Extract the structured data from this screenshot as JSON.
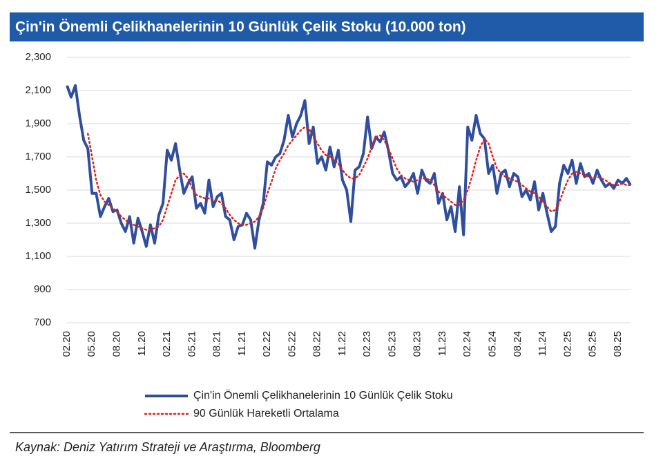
{
  "chart_data": {
    "type": "line",
    "title": "Çin'in Önemli Çelikhanelerinin 10 Günlük Çelik Stoku (10.000 ton)",
    "source": "Kaynak: Deniz Yatırım Strateji ve Araştırma, Bloomberg",
    "categories": [
      "02.20",
      null,
      null,
      null,
      null,
      null,
      "05.20",
      null,
      null,
      null,
      null,
      null,
      "08.20",
      null,
      null,
      null,
      null,
      null,
      "11.20",
      null,
      null,
      null,
      null,
      null,
      "02.21",
      null,
      null,
      null,
      null,
      null,
      "05.21",
      null,
      null,
      null,
      null,
      null,
      "08.21",
      null,
      null,
      null,
      null,
      null,
      "11.21",
      null,
      null,
      null,
      null,
      null,
      "02.22",
      null,
      null,
      null,
      null,
      null,
      "05.22",
      null,
      null,
      null,
      null,
      null,
      "08.22",
      null,
      null,
      null,
      null,
      null,
      "11.22",
      null,
      null,
      null,
      null,
      null,
      "02.23",
      null,
      null,
      null,
      null,
      null,
      "05.23",
      null,
      null,
      null,
      null,
      null,
      "08.23",
      null,
      null,
      null,
      null,
      null,
      "11.23",
      null,
      null,
      null,
      null,
      null,
      "02.24",
      null,
      null,
      null,
      null,
      null,
      "05.24",
      null,
      null,
      null,
      null,
      null,
      "08.24",
      null,
      null,
      null,
      null,
      null,
      "11.24",
      null,
      null,
      null,
      null,
      null,
      "02.25",
      null,
      null,
      null,
      null,
      null,
      "05.25",
      null,
      null,
      null,
      null,
      null,
      "08.25",
      null,
      null,
      null
    ],
    "series": [
      {
        "name": "Çin'in Önemli Çelikhanelerinin 10 Günlük Çelik Stoku",
        "color": "#2f4f9e",
        "style": "solid",
        "values": [
          2130,
          2060,
          2130,
          1950,
          1800,
          1750,
          1480,
          1480,
          1340,
          1400,
          1450,
          1370,
          1380,
          1300,
          1250,
          1340,
          1180,
          1330,
          1250,
          1160,
          1290,
          1180,
          1350,
          1420,
          1740,
          1680,
          1780,
          1620,
          1480,
          1540,
          1580,
          1390,
          1420,
          1360,
          1560,
          1400,
          1460,
          1480,
          1340,
          1320,
          1200,
          1280,
          1290,
          1360,
          1320,
          1150,
          1320,
          1420,
          1670,
          1650,
          1700,
          1720,
          1800,
          1950,
          1820,
          1900,
          1950,
          2040,
          1780,
          1880,
          1660,
          1700,
          1620,
          1760,
          1640,
          1740,
          1560,
          1500,
          1310,
          1620,
          1640,
          1720,
          1940,
          1750,
          1820,
          1790,
          1850,
          1740,
          1600,
          1560,
          1580,
          1520,
          1550,
          1600,
          1480,
          1620,
          1560,
          1540,
          1600,
          1420,
          1480,
          1320,
          1400,
          1250,
          1520,
          1230,
          1880,
          1800,
          1950,
          1840,
          1810,
          1600,
          1650,
          1480,
          1600,
          1620,
          1520,
          1600,
          1580,
          1460,
          1500,
          1440,
          1550,
          1380,
          1480,
          1360,
          1250,
          1280,
          1540,
          1650,
          1600,
          1680,
          1540,
          1660,
          1580,
          1600,
          1540,
          1620,
          1560,
          1520,
          1540,
          1510,
          1560,
          1540,
          1570,
          1530
        ]
      },
      {
        "name": "90 Günlük Hareketli Ortalama",
        "color": "#e02020",
        "style": "dotted",
        "values": [
          null,
          null,
          null,
          null,
          null,
          1840,
          1700,
          1560,
          1470,
          1430,
          1410,
          1390,
          1370,
          1340,
          1320,
          1300,
          1290,
          1280,
          1270,
          1260,
          1260,
          1270,
          1280,
          1320,
          1400,
          1480,
          1560,
          1590,
          1600,
          1570,
          1510,
          1470,
          1460,
          1450,
          1450,
          1440,
          1440,
          1420,
          1390,
          1350,
          1320,
          1300,
          1290,
          1290,
          1300,
          1310,
          1340,
          1390,
          1480,
          1550,
          1630,
          1680,
          1720,
          1770,
          1800,
          1830,
          1860,
          1880,
          1870,
          1820,
          1780,
          1740,
          1710,
          1700,
          1680,
          1660,
          1620,
          1590,
          1570,
          1570,
          1590,
          1640,
          1690,
          1760,
          1820,
          1830,
          1800,
          1750,
          1690,
          1630,
          1590,
          1570,
          1560,
          1550,
          1560,
          1570,
          1570,
          1560,
          1530,
          1490,
          1470,
          1450,
          1430,
          1410,
          1410,
          1440,
          1500,
          1580,
          1680,
          1760,
          1810,
          1780,
          1700,
          1630,
          1600,
          1580,
          1570,
          1560,
          1550,
          1530,
          1510,
          1490,
          1480,
          1460,
          1430,
          1400,
          1370,
          1380,
          1430,
          1500,
          1560,
          1600,
          1610,
          1600,
          1590,
          1580,
          1570,
          1580,
          1570,
          1560,
          1540,
          1530,
          1530,
          1540,
          1530,
          1530
        ]
      }
    ],
    "ylim": [
      700,
      2300
    ],
    "yticks": [
      {
        "value": 700,
        "label": "700"
      },
      {
        "value": 900,
        "label": "900"
      },
      {
        "value": 1100,
        "label": "1,100"
      },
      {
        "value": 1300,
        "label": "1,300"
      },
      {
        "value": 1500,
        "label": "1,500"
      },
      {
        "value": 1700,
        "label": "1,700"
      },
      {
        "value": 1900,
        "label": "1,900"
      },
      {
        "value": 2100,
        "label": "2,100"
      },
      {
        "value": 2300,
        "label": "2,300"
      }
    ],
    "grid": true,
    "legend": "bottom"
  }
}
